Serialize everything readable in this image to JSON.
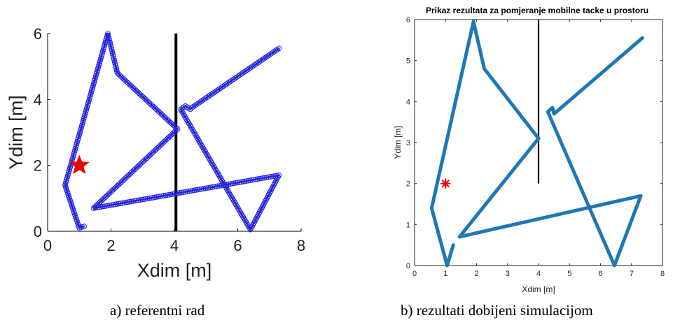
{
  "chart_data": [
    {
      "type": "line",
      "panel": "a",
      "title": "",
      "xlabel": "Xdim [m]",
      "ylabel": "Ydim [m]",
      "xlim": [
        0,
        8
      ],
      "ylim": [
        0,
        6
      ],
      "xticks": [
        "0",
        "2",
        "4",
        "6",
        "8"
      ],
      "yticks": [
        "0",
        "2",
        "4",
        "6"
      ],
      "grid": false,
      "series": [
        {
          "marker": "circle",
          "color": "#2222dd",
          "x": [
            1.15,
            1.0,
            0.55,
            1.9,
            2.2,
            4.1,
            1.45,
            7.3,
            6.4,
            4.2,
            4.35,
            4.5,
            4.55,
            7.3
          ],
          "y": [
            0.15,
            0.1,
            1.4,
            6.0,
            4.8,
            3.1,
            0.7,
            1.7,
            0.05,
            3.7,
            3.8,
            3.7,
            3.75,
            5.55
          ]
        }
      ],
      "obstacle": {
        "x": 4.05,
        "y": [
          0,
          6
        ]
      },
      "point": {
        "x": 1.0,
        "y": 2.0,
        "marker": "star",
        "color": "#ee0000"
      },
      "caption": "a) referentni rad"
    },
    {
      "type": "line",
      "panel": "b",
      "title": "Prikaz rezultata za pomjeranje mobilne tacke u prostoru",
      "xlabel": "Xdim [m]",
      "ylabel": "Ydim [m]",
      "xlim": [
        0,
        8
      ],
      "ylim": [
        0,
        6
      ],
      "xticks": [
        "0",
        "1",
        "2",
        "3",
        "4",
        "5",
        "6",
        "7",
        "8"
      ],
      "yticks": [
        "0",
        "1",
        "2",
        "3",
        "4",
        "5",
        "6"
      ],
      "grid": false,
      "series": [
        {
          "marker": "none",
          "color": "#1f77b4",
          "x": [
            1.25,
            1.05,
            0.55,
            1.9,
            2.25,
            4.0,
            1.45,
            7.3,
            6.45,
            4.3,
            4.45,
            4.5,
            7.35
          ],
          "y": [
            0.5,
            0.0,
            1.4,
            5.95,
            4.8,
            3.1,
            0.7,
            1.7,
            0.0,
            3.75,
            3.85,
            3.7,
            5.55
          ]
        }
      ],
      "obstacle": {
        "x": 4.0,
        "y": [
          2,
          6
        ]
      },
      "point": {
        "x": 1.0,
        "y": 2.0,
        "marker": "asterisk",
        "color": "#ee0000"
      },
      "caption": "b) rezultati dobijeni simulacijom"
    }
  ]
}
